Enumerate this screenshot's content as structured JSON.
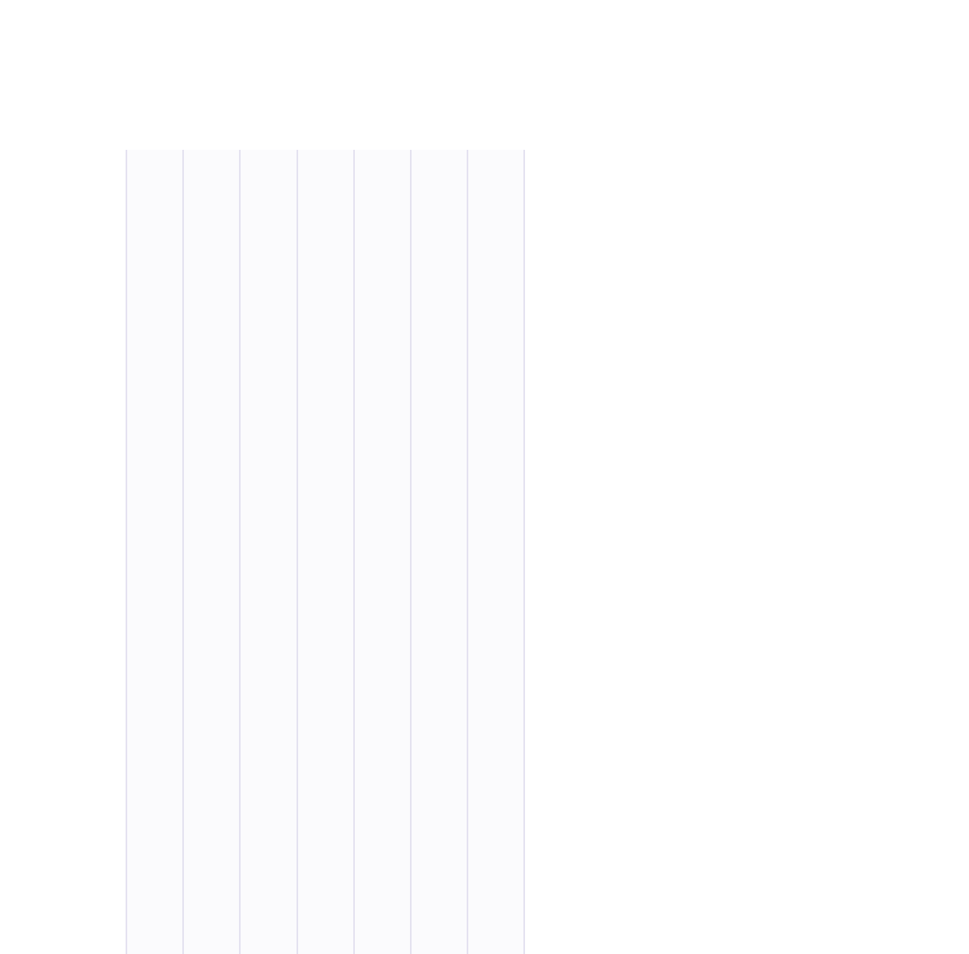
{
  "page": {
    "state": "blank",
    "line_color": "#f3f2fa"
  }
}
